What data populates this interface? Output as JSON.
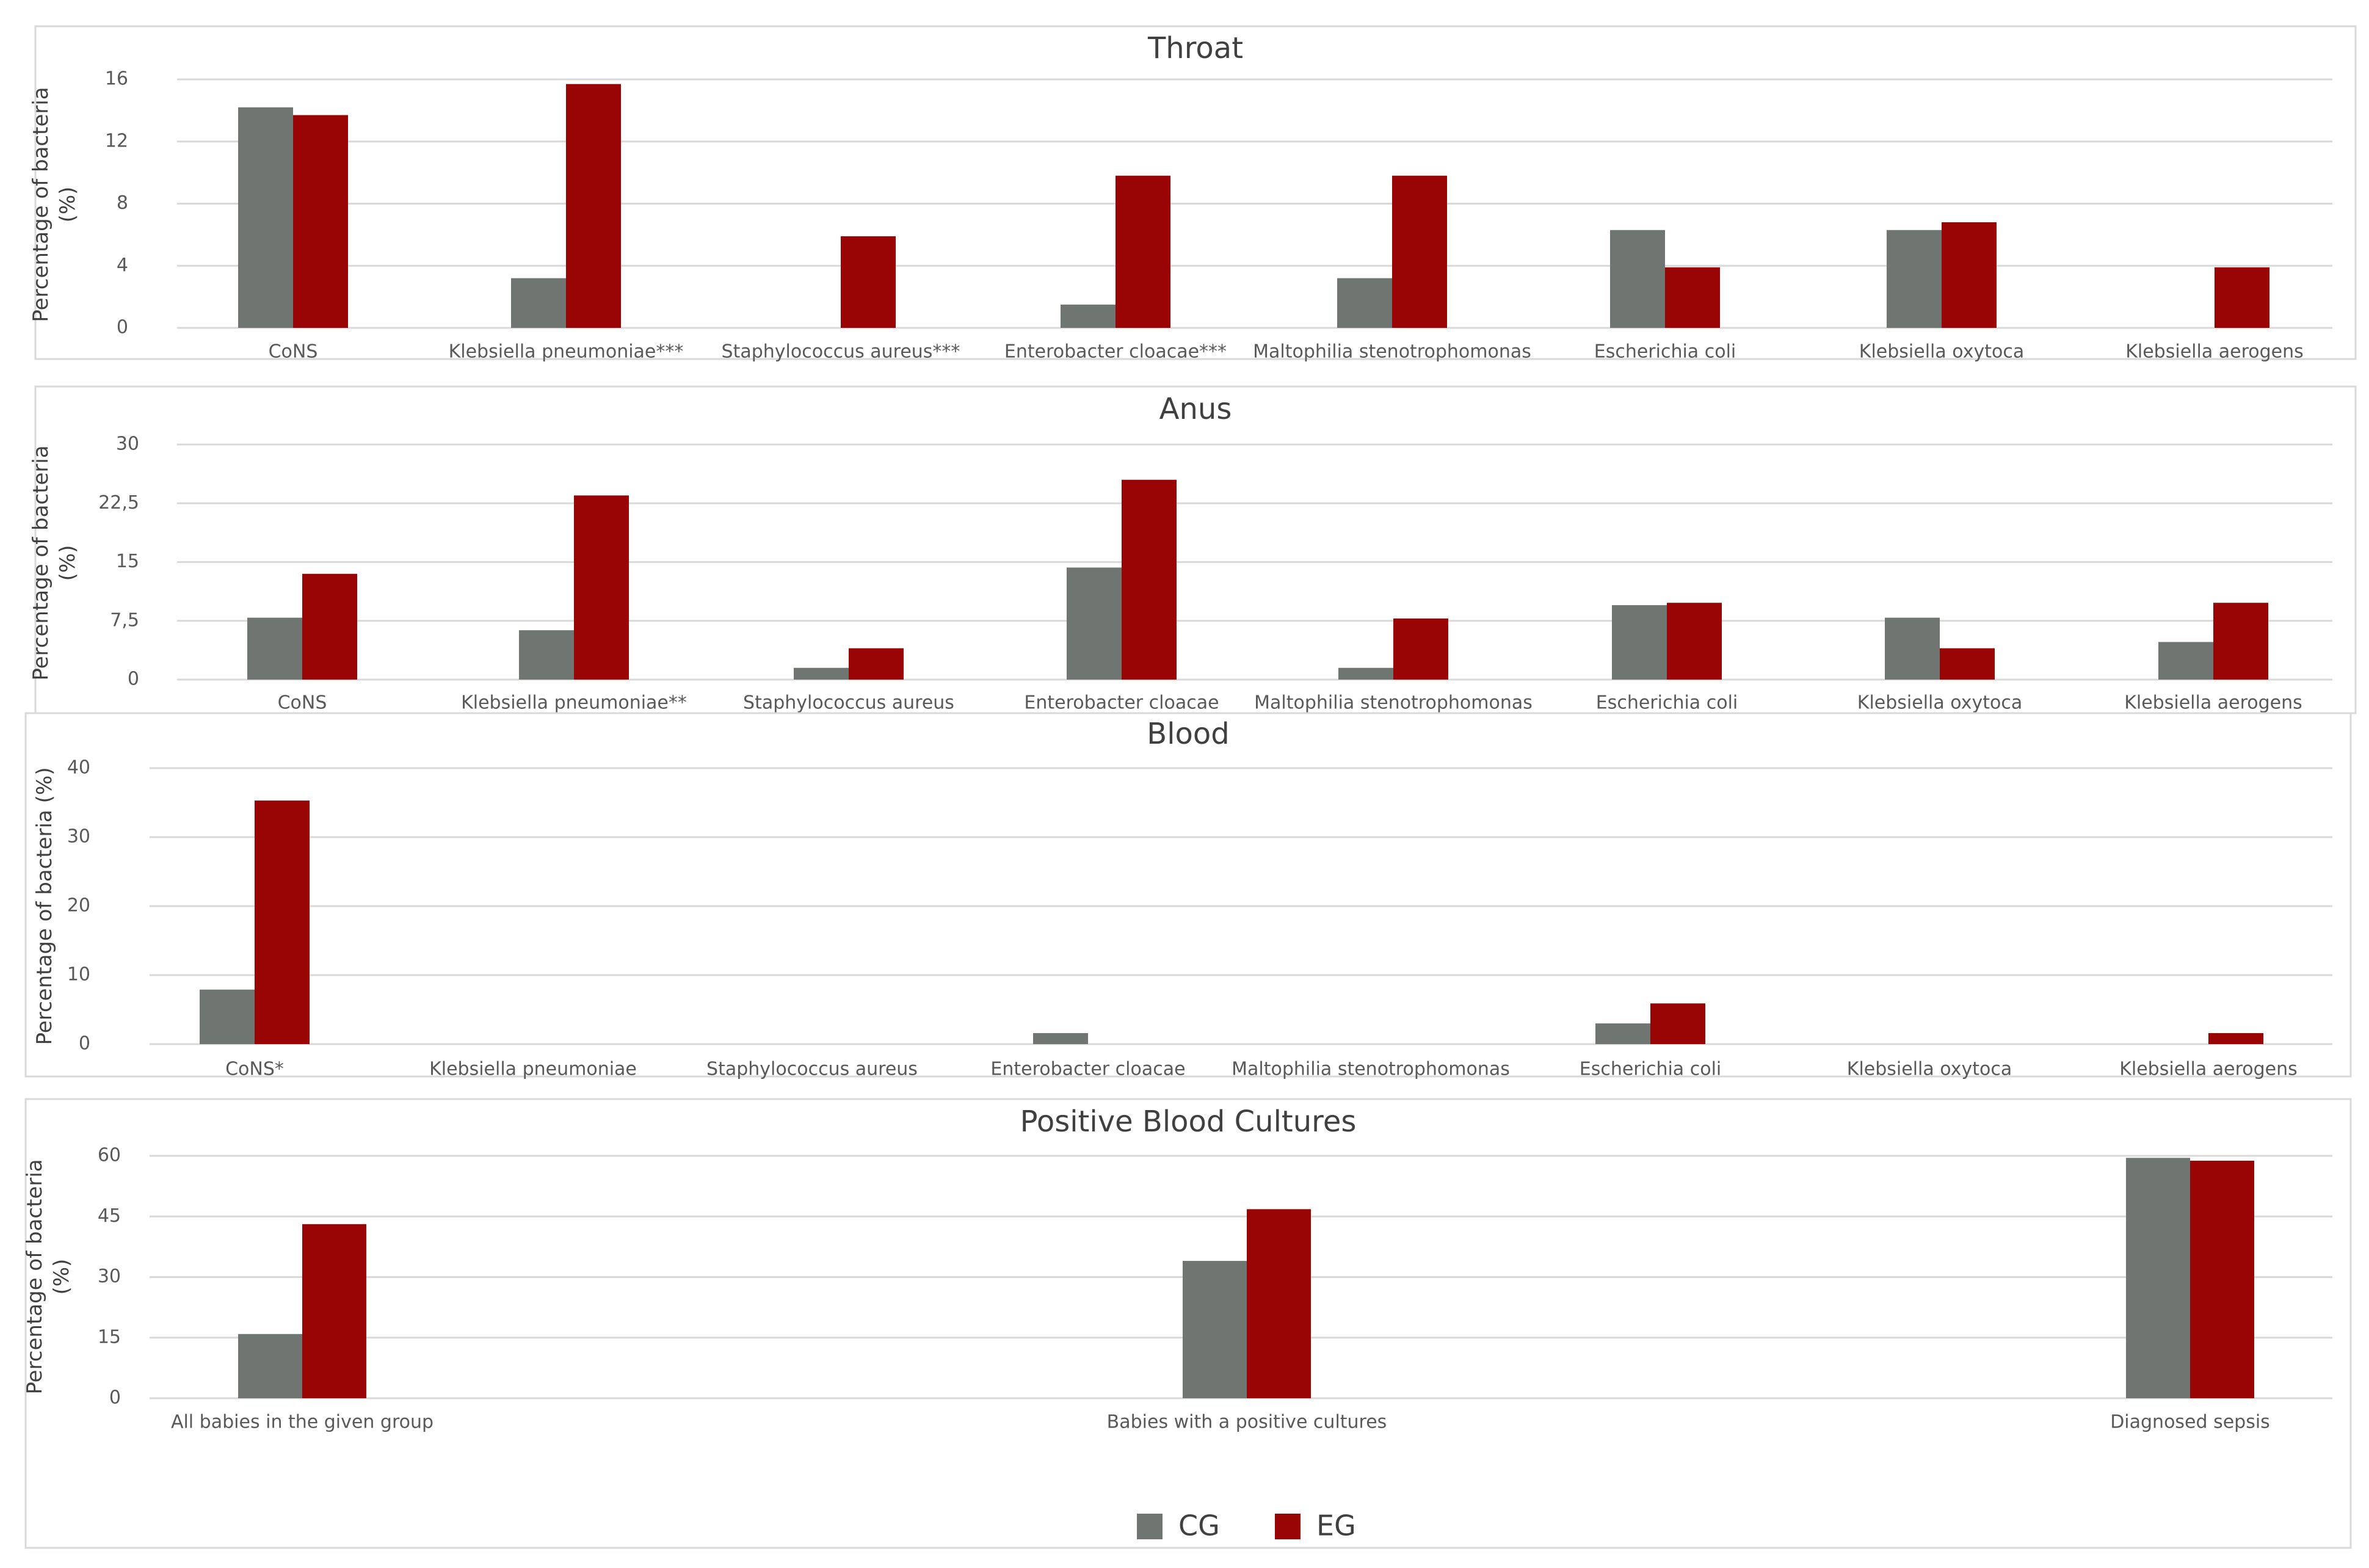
{
  "colors": {
    "CG": "#6f7571",
    "EG": "#990505"
  },
  "legend": {
    "cg_label": "CG",
    "eg_label": "EG"
  },
  "chart_data": [
    {
      "type": "bar",
      "title": "Throat",
      "ylabel": "Percentage of bacteria (%)",
      "ylabel_lines": [
        "Percentage of bacteria",
        "(%)"
      ],
      "ylim": [
        0,
        16
      ],
      "yticks": [
        0,
        4,
        8,
        12,
        16
      ],
      "ytick_labels": [
        "0",
        "4",
        "8",
        "12",
        "16"
      ],
      "categories": [
        "CoNS",
        "Klebsiella pneumoniae***",
        "Staphylococcus aureus***",
        "Enterobacter cloacae***",
        "Maltophilia stenotrophomonas",
        "Escherichia coli",
        "Klebsiella oxytoca",
        "Klebsiella aerogens"
      ],
      "series": [
        {
          "name": "CG",
          "values": [
            14.2,
            3.2,
            0,
            1.5,
            3.2,
            6.3,
            6.3,
            0
          ]
        },
        {
          "name": "EG",
          "values": [
            13.7,
            15.7,
            5.9,
            9.8,
            9.8,
            3.9,
            6.8,
            3.9
          ]
        }
      ]
    },
    {
      "type": "bar",
      "title": "Anus",
      "ylabel": "Percentage of bacteria (%)",
      "ylabel_lines": [
        "Percentage of bacteria",
        "(%)"
      ],
      "ylim": [
        0,
        30
      ],
      "yticks": [
        0,
        7.5,
        15,
        22.5,
        30
      ],
      "ytick_labels": [
        "0",
        "7,5",
        "15",
        "22,5",
        "30"
      ],
      "categories": [
        "CoNS",
        "Klebsiella pneumoniae**",
        "Staphylococcus aureus",
        "Enterobacter cloacae",
        "Maltophilia stenotrophomonas",
        "Escherichia coli",
        "Klebsiella oxytoca",
        "Klebsiella aerogens"
      ],
      "series": [
        {
          "name": "CG",
          "values": [
            7.9,
            6.3,
            1.5,
            14.3,
            1.5,
            9.5,
            7.9,
            4.8
          ]
        },
        {
          "name": "EG",
          "values": [
            13.5,
            23.5,
            4.0,
            25.5,
            7.8,
            9.8,
            4.0,
            9.8
          ]
        }
      ]
    },
    {
      "type": "bar",
      "title": "Blood",
      "ylabel": "Percentage of bacteria (%)",
      "ylabel_lines": [
        "Percentage of bacteria (%)"
      ],
      "ylim": [
        0,
        40
      ],
      "yticks": [
        0,
        10,
        20,
        30,
        40
      ],
      "ytick_labels": [
        "0",
        "10",
        "20",
        "30",
        "40"
      ],
      "categories": [
        "CoNS*",
        "Klebsiella pneumoniae",
        "Staphylococcus aureus",
        "Enterobacter cloacae",
        "Maltophilia stenotrophomonas",
        "Escherichia coli",
        "Klebsiella oxytoca",
        "Klebsiella aerogens"
      ],
      "series": [
        {
          "name": "CG",
          "values": [
            7.9,
            0,
            0,
            1.6,
            0,
            3.0,
            0,
            0
          ]
        },
        {
          "name": "EG",
          "values": [
            35.3,
            0,
            0,
            0,
            0,
            5.9,
            0,
            1.6
          ]
        }
      ]
    },
    {
      "type": "bar",
      "title": "Positive Blood Cultures",
      "ylabel": "Percentage of bacteria (%)",
      "ylabel_lines": [
        "Percentage of bacteria",
        "(%)"
      ],
      "ylim": [
        0,
        60
      ],
      "yticks": [
        0,
        15,
        30,
        45,
        60
      ],
      "ytick_labels": [
        "0",
        "15",
        "30",
        "45",
        "60"
      ],
      "categories": [
        "All babies in the given group",
        "Babies with a positive cultures",
        "Diagnosed sepsis"
      ],
      "series": [
        {
          "name": "CG",
          "values": [
            15.9,
            34.0,
            59.5
          ]
        },
        {
          "name": "EG",
          "values": [
            43.1,
            46.8,
            58.8
          ]
        }
      ]
    }
  ]
}
